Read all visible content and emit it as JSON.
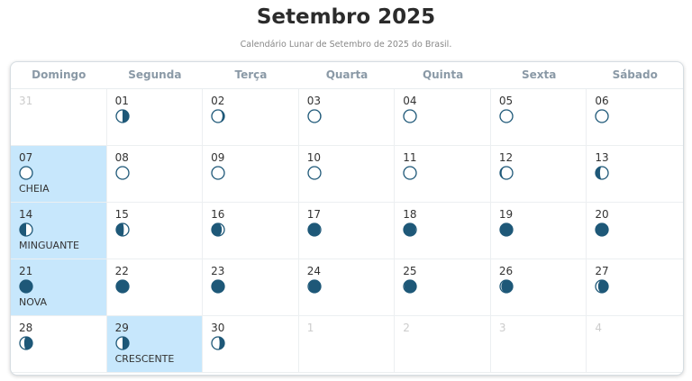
{
  "title": "Setembro 2025",
  "subtitle": "Calendário Lunar de Setembro de 2025 do Brasil.",
  "colors": {
    "moon_dark": "#1e5878",
    "highlight": "#c7e7fc"
  },
  "weekdays": [
    "Domingo",
    "Segunda",
    "Terça",
    "Quarta",
    "Quinta",
    "Sexta",
    "Sábado"
  ],
  "days": [
    {
      "day": "31",
      "out": true
    },
    {
      "day": "01",
      "lit": 0.5,
      "side": "left"
    },
    {
      "day": "02",
      "lit": 0.85,
      "side": "left"
    },
    {
      "day": "03",
      "lit": 0.95,
      "side": "left"
    },
    {
      "day": "04",
      "lit": 1,
      "side": "left"
    },
    {
      "day": "05",
      "lit": 1,
      "side": "left"
    },
    {
      "day": "06",
      "lit": 1,
      "side": "left"
    },
    {
      "day": "07",
      "lit": 1,
      "side": "left",
      "phase": "CHEIA",
      "highlight": true
    },
    {
      "day": "08",
      "lit": 1,
      "side": "right"
    },
    {
      "day": "09",
      "lit": 1,
      "side": "right"
    },
    {
      "day": "10",
      "lit": 1,
      "side": "right"
    },
    {
      "day": "11",
      "lit": 0.97,
      "side": "right"
    },
    {
      "day": "12",
      "lit": 0.88,
      "side": "right"
    },
    {
      "day": "13",
      "lit": 0.65,
      "side": "right"
    },
    {
      "day": "14",
      "lit": 0.5,
      "side": "right",
      "phase": "MINGUANTE",
      "highlight": true
    },
    {
      "day": "15",
      "lit": 0.4,
      "side": "right"
    },
    {
      "day": "16",
      "lit": 0.2,
      "side": "right"
    },
    {
      "day": "17",
      "lit": 0.05,
      "side": "right"
    },
    {
      "day": "18",
      "lit": 0.05,
      "side": "right"
    },
    {
      "day": "19",
      "lit": 0,
      "side": "right"
    },
    {
      "day": "20",
      "lit": 0,
      "side": "right"
    },
    {
      "day": "21",
      "lit": 0,
      "side": "left",
      "phase": "NOVA",
      "highlight": true
    },
    {
      "day": "22",
      "lit": 0,
      "side": "left"
    },
    {
      "day": "23",
      "lit": 0,
      "side": "left"
    },
    {
      "day": "24",
      "lit": 0.05,
      "side": "left"
    },
    {
      "day": "25",
      "lit": 0.05,
      "side": "left"
    },
    {
      "day": "26",
      "lit": 0.1,
      "side": "left"
    },
    {
      "day": "27",
      "lit": 0.2,
      "side": "left"
    },
    {
      "day": "28",
      "lit": 0.35,
      "side": "left"
    },
    {
      "day": "29",
      "lit": 0.5,
      "side": "left",
      "phase": "CRESCENTE",
      "highlight": true
    },
    {
      "day": "30",
      "lit": 0.62,
      "side": "left"
    },
    {
      "day": "1",
      "out": true
    },
    {
      "day": "2",
      "out": true
    },
    {
      "day": "3",
      "out": true
    },
    {
      "day": "4",
      "out": true
    }
  ]
}
